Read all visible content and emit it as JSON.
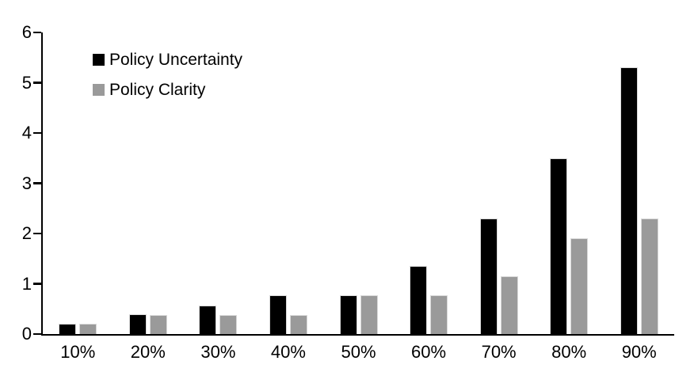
{
  "chart_data": {
    "type": "bar",
    "title": "",
    "xlabel": "",
    "ylabel": "",
    "categories": [
      "10%",
      "20%",
      "30%",
      "40%",
      "50%",
      "60%",
      "70%",
      "80%",
      "90%"
    ],
    "series": [
      {
        "name": "Policy Uncertainty",
        "color": "#000000",
        "values": [
          0.2,
          0.4,
          0.57,
          0.77,
          0.77,
          1.35,
          2.3,
          3.5,
          5.3
        ]
      },
      {
        "name": "Policy Clarity",
        "color": "#9a9a9a",
        "values": [
          0.2,
          0.38,
          0.38,
          0.38,
          0.77,
          0.77,
          1.15,
          1.9,
          2.3
        ]
      }
    ],
    "ylim": [
      0,
      6
    ],
    "yticks": [
      0,
      1,
      2,
      3,
      4,
      5,
      6
    ],
    "grid": false,
    "legend_position": "top-left-inside",
    "axis_color": "#000000",
    "bar_border_color": "#d9d9d9"
  }
}
